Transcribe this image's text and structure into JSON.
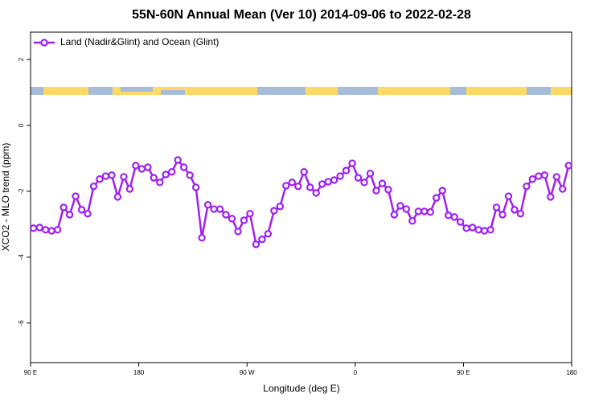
{
  "chart_data": {
    "type": "line",
    "title": "55N-60N Annual Mean (Ver 10)   2014-09-06 to 2022-02-28",
    "xlabel": "Longitude (deg E)",
    "ylabel": "XCO2 - MLO trend (ppm)",
    "legend": "top-left",
    "xlim": [
      90,
      540
    ],
    "ylim": [
      -7.2,
      2.83
    ],
    "xticks": [
      {
        "value": 90,
        "label": "90 E"
      },
      180,
      {
        "value": 270,
        "label": "90 W"
      },
      {
        "value": 360,
        "label": "0"
      },
      {
        "value": 450,
        "label": "90 E"
      },
      {
        "value": 540,
        "label": "180"
      }
    ],
    "yticks": [
      2,
      0,
      -2,
      -4,
      -6
    ],
    "x": [
      92.5,
      97.5,
      102.5,
      107.5,
      112.5,
      117.5,
      122.5,
      127.5,
      132.5,
      137.5,
      142.5,
      147.5,
      152.5,
      157.5,
      162.5,
      167.5,
      172.5,
      177.5,
      182.5,
      187.5,
      192.5,
      197.5,
      202.5,
      207.5,
      212.5,
      217.5,
      222.5,
      227.5,
      232.5,
      237.5,
      242.5,
      247.5,
      252.5,
      257.5,
      262.5,
      267.5,
      272.5,
      277.5,
      282.5,
      287.5,
      292.5,
      297.5,
      302.5,
      307.5,
      312.5,
      317.5,
      322.5,
      327.5,
      332.5,
      337.5,
      342.5,
      347.5,
      352.5,
      357.5,
      362.5,
      367.5,
      372.5,
      377.5,
      382.5,
      387.5,
      392.5,
      397.5,
      402.5,
      407.5,
      412.5,
      417.5,
      422.5,
      427.5,
      432.5,
      437.5,
      442.5,
      447.5,
      452.5,
      457.5,
      462.5,
      467.5,
      472.5,
      477.5,
      482.5,
      487.5,
      492.5,
      497.5,
      502.5,
      507.5,
      512.5,
      517.5,
      522.5,
      527.5,
      532.5,
      537.5
    ],
    "series": [
      {
        "name": "Land (Nadir&Glint) and Ocean (Glint)",
        "color": "#a020f0",
        "values": [
          -3.12,
          -3.1,
          -3.17,
          -3.2,
          -3.17,
          -2.49,
          -2.71,
          -2.15,
          -2.56,
          -2.68,
          -1.85,
          -1.63,
          -1.54,
          -1.51,
          -2.17,
          -1.56,
          -1.93,
          -1.22,
          -1.32,
          -1.27,
          -1.59,
          -1.73,
          -1.49,
          -1.41,
          -1.05,
          -1.27,
          -1.51,
          -1.88,
          -3.41,
          -2.41,
          -2.54,
          -2.54,
          -2.71,
          -2.83,
          -3.22,
          -2.88,
          -2.68,
          -3.61,
          -3.46,
          -3.29,
          -2.59,
          -2.46,
          -1.83,
          -1.73,
          -1.85,
          -1.41,
          -1.88,
          -2.05,
          -1.78,
          -1.71,
          -1.66,
          -1.54,
          -1.37,
          -1.15,
          -1.59,
          -1.73,
          -1.46,
          -1.98,
          -1.76,
          -1.95,
          -2.71,
          -2.44,
          -2.54,
          -2.9,
          -2.61,
          -2.61,
          -2.63,
          -2.2,
          -1.98,
          -2.73,
          -2.78,
          -2.93,
          -3.12,
          -3.1,
          -3.17,
          -3.2,
          -3.17,
          -2.49,
          -2.71,
          -2.15,
          -2.56,
          -2.68,
          -1.85,
          -1.63,
          -1.54,
          -1.51,
          -2.17,
          -1.56,
          -1.93,
          -1.22
        ]
      }
    ]
  }
}
